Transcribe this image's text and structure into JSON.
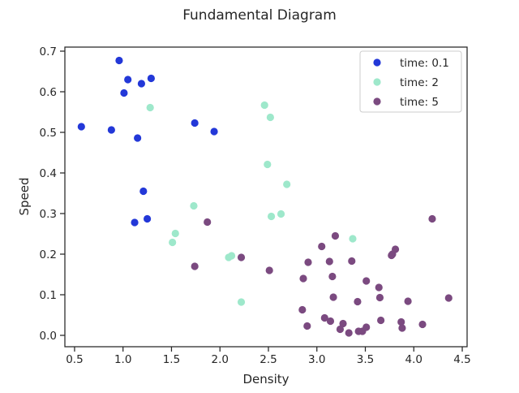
{
  "chart_data": {
    "type": "scatter",
    "title": "Fundamental Diagram",
    "xlabel": "Density",
    "ylabel": "Speed",
    "xlim": [
      0.4,
      4.55
    ],
    "ylim": [
      -0.028,
      0.71
    ],
    "xticks": [
      0.5,
      1.0,
      1.5,
      2.0,
      2.5,
      3.0,
      3.5,
      4.0,
      4.5
    ],
    "xtick_labels": [
      "0.5",
      "1.0",
      "1.5",
      "2.0",
      "2.5",
      "3.0",
      "3.5",
      "4.0",
      "4.5"
    ],
    "yticks": [
      0.0,
      0.1,
      0.2,
      0.3,
      0.4,
      0.5,
      0.6,
      0.7
    ],
    "ytick_labels": [
      "0.0",
      "0.1",
      "0.2",
      "0.3",
      "0.4",
      "0.5",
      "0.6",
      "0.7"
    ],
    "grid": false,
    "legend_position": "top-right",
    "series": [
      {
        "name": "time: 0.1",
        "color": "#2338d8",
        "points": [
          [
            0.57,
            0.514
          ],
          [
            0.88,
            0.506
          ],
          [
            0.96,
            0.677
          ],
          [
            1.01,
            0.597
          ],
          [
            1.05,
            0.63
          ],
          [
            1.15,
            0.486
          ],
          [
            1.19,
            0.62
          ],
          [
            1.29,
            0.633
          ],
          [
            1.74,
            0.523
          ],
          [
            1.94,
            0.502
          ],
          [
            1.21,
            0.355
          ],
          [
            1.12,
            0.278
          ],
          [
            1.25,
            0.287
          ]
        ]
      },
      {
        "name": "time: 2",
        "color": "#9ee8cb",
        "points": [
          [
            1.28,
            0.561
          ],
          [
            1.73,
            0.319
          ],
          [
            1.54,
            0.251
          ],
          [
            1.51,
            0.229
          ],
          [
            2.09,
            0.192
          ],
          [
            2.12,
            0.196
          ],
          [
            2.22,
            0.082
          ],
          [
            2.46,
            0.567
          ],
          [
            2.52,
            0.537
          ],
          [
            2.49,
            0.421
          ],
          [
            2.69,
            0.372
          ],
          [
            2.53,
            0.293
          ],
          [
            2.63,
            0.299
          ],
          [
            3.37,
            0.238
          ]
        ]
      },
      {
        "name": "time: 5",
        "color": "#7b4a80",
        "points": [
          [
            1.87,
            0.279
          ],
          [
            1.74,
            0.17
          ],
          [
            2.22,
            0.192
          ],
          [
            2.51,
            0.16
          ],
          [
            2.86,
            0.14
          ],
          [
            2.91,
            0.18
          ],
          [
            3.05,
            0.219
          ],
          [
            3.13,
            0.182
          ],
          [
            3.19,
            0.245
          ],
          [
            3.16,
            0.145
          ],
          [
            3.36,
            0.183
          ],
          [
            3.51,
            0.134
          ],
          [
            3.17,
            0.094
          ],
          [
            3.42,
            0.083
          ],
          [
            3.64,
            0.118
          ],
          [
            3.65,
            0.093
          ],
          [
            3.78,
            0.2
          ],
          [
            3.81,
            0.212
          ],
          [
            3.94,
            0.084
          ],
          [
            4.19,
            0.287
          ],
          [
            4.36,
            0.092
          ],
          [
            2.85,
            0.063
          ],
          [
            2.9,
            0.023
          ],
          [
            3.08,
            0.043
          ],
          [
            3.14,
            0.035
          ],
          [
            3.24,
            0.015
          ],
          [
            3.27,
            0.029
          ],
          [
            3.33,
            0.006
          ],
          [
            3.43,
            0.01
          ],
          [
            3.47,
            0.01
          ],
          [
            3.51,
            0.02
          ],
          [
            3.66,
            0.037
          ],
          [
            3.87,
            0.033
          ],
          [
            3.88,
            0.018
          ],
          [
            4.09,
            0.027
          ],
          [
            3.77,
            0.197
          ]
        ]
      }
    ]
  }
}
